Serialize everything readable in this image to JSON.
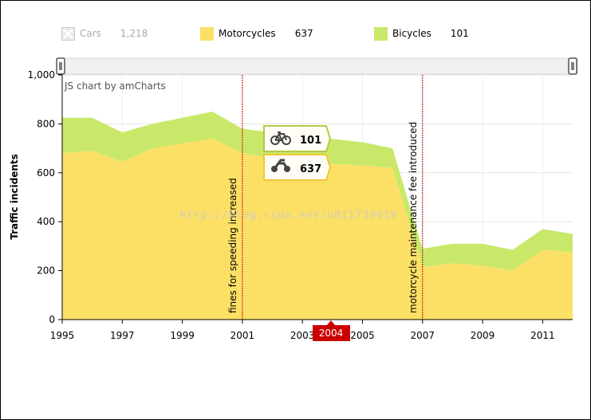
{
  "legend": [
    {
      "label": "Cars",
      "value": "1,218",
      "color": "#cccccc",
      "hidden": true
    },
    {
      "label": "Motorcycles",
      "value": "637",
      "color": "#fce066"
    },
    {
      "label": "Bicycles",
      "value": "101",
      "color": "#c9e86a"
    }
  ],
  "credit": "JS chart by amCharts",
  "watermark": "http://blog.csdn.net/u011730019",
  "tooltip": {
    "bicycles": "101",
    "motorcycles": "637"
  },
  "cursor_label": "2004",
  "colors": {
    "motorcycles": "#fce066",
    "bicycles": "#c9e86a",
    "guide": "#cc0000",
    "cursor_label_bg": "#cc0000",
    "tooltip_border_bike": "#b0cc44",
    "tooltip_border_moto": "#f0c830"
  },
  "chart_data": {
    "type": "area",
    "stacked": true,
    "x": [
      1995,
      1996,
      1997,
      1998,
      1999,
      2000,
      2001,
      2002,
      2003,
      2004,
      2005,
      2006,
      2007,
      2008,
      2009,
      2010,
      2011,
      2012
    ],
    "series": [
      {
        "name": "Motorcycles",
        "values": [
          680,
          690,
          645,
          700,
          720,
          740,
          680,
          660,
          650,
          637,
          630,
          620,
          215,
          230,
          220,
          200,
          285,
          275
        ]
      },
      {
        "name": "Bicycles",
        "values": [
          145,
          135,
          120,
          100,
          105,
          110,
          100,
          105,
          95,
          101,
          95,
          80,
          75,
          80,
          90,
          85,
          85,
          75
        ]
      }
    ],
    "xlabel": "",
    "ylabel": "Traffic incidents",
    "ylim": [
      0,
      1000
    ],
    "yticks": [
      0,
      200,
      400,
      600,
      800,
      1000
    ],
    "ytick_labels": [
      "0",
      "200",
      "400",
      "600",
      "800",
      "1,000"
    ],
    "xticks": [
      1995,
      1997,
      1999,
      2001,
      2003,
      2005,
      2007,
      2009,
      2011
    ],
    "guides": [
      {
        "x": 2001,
        "label": "fines for speeding increased"
      },
      {
        "x": 2007,
        "label": "motorcycle maintenance fee introduced"
      }
    ],
    "grid": true,
    "legend_position": "top"
  }
}
